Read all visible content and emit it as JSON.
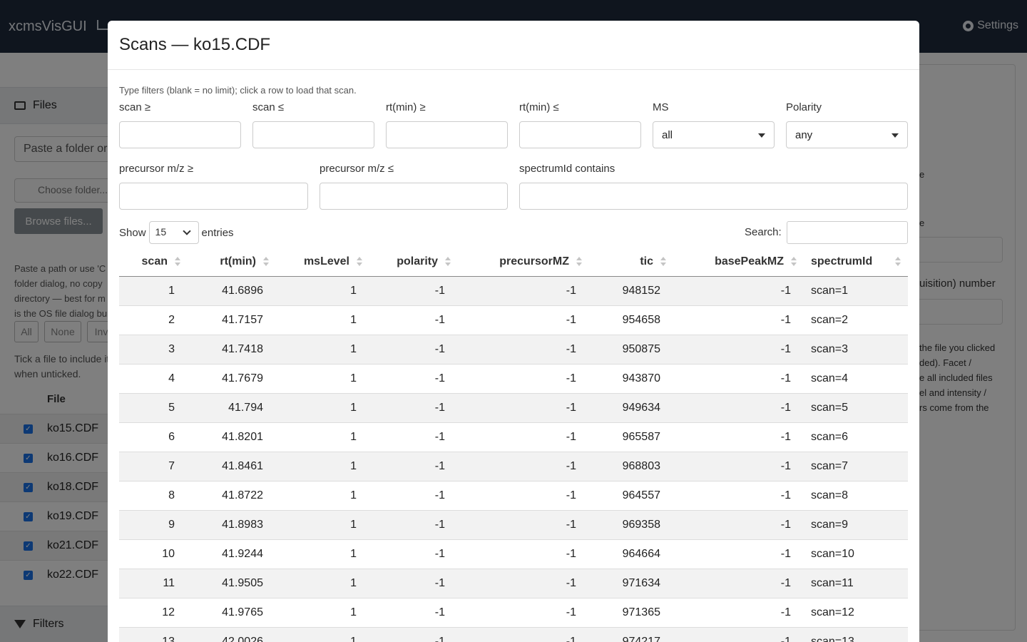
{
  "app": {
    "brand": "xcmsVisGUI",
    "settings_label": "Settings"
  },
  "sidebar": {
    "files_header": "Files",
    "folder_input_placeholder": "Paste a folder or",
    "choose_folder_placeholder": "Choose folder...",
    "browse_label": "Browse files...",
    "help_lines": [
      "Paste a path or use 'C",
      "folder dialog, no copy",
      "directory — best for m",
      "is the OS file dialog bu"
    ],
    "select_buttons": [
      "All",
      "None",
      "Inv"
    ],
    "tick_lines": [
      "Tick a file to include it",
      "when unticked."
    ],
    "file_column": "File",
    "files": [
      "ko15.CDF",
      "ko16.CDF",
      "ko18.CDF",
      "ko19.CDF",
      "ko21.CDF",
      "ko22.CDF"
    ],
    "filters_header": "Filters"
  },
  "right_panel": {
    "fragments": [
      "e",
      "e"
    ],
    "number_label": "uisition) number",
    "help_lines": [
      "the file you clicked",
      "ded). Facet /",
      "e all included files",
      "el and intensity /",
      "rs come from the"
    ]
  },
  "modal": {
    "title": "Scans — ko15.CDF",
    "hint": "Type filters (blank = no limit); click a row to load that scan.",
    "filters": {
      "scan_min": "scan ≥",
      "scan_max": "scan ≤",
      "rt_min": "rt(min) ≥",
      "rt_max": "rt(min) ≤",
      "ms": "MS",
      "ms_value": "all",
      "polarity": "Polarity",
      "polarity_value": "any",
      "prec_min": "precursor m/z ≥",
      "prec_max": "precursor m/z ≤",
      "spectrum_contains": "spectrumId contains"
    },
    "show_label": "Show",
    "entries_value": "15",
    "entries_label": "entries",
    "search_label": "Search:",
    "columns": [
      "scan",
      "rt(min)",
      "msLevel",
      "polarity",
      "precursorMZ",
      "tic",
      "basePeakMZ",
      "spectrumId"
    ],
    "rows": [
      [
        "1",
        "41.6896",
        "1",
        "-1",
        "-1",
        "948152",
        "-1",
        "scan=1"
      ],
      [
        "2",
        "41.7157",
        "1",
        "-1",
        "-1",
        "954658",
        "-1",
        "scan=2"
      ],
      [
        "3",
        "41.7418",
        "1",
        "-1",
        "-1",
        "950875",
        "-1",
        "scan=3"
      ],
      [
        "4",
        "41.7679",
        "1",
        "-1",
        "-1",
        "943870",
        "-1",
        "scan=4"
      ],
      [
        "5",
        "41.794",
        "1",
        "-1",
        "-1",
        "949634",
        "-1",
        "scan=5"
      ],
      [
        "6",
        "41.8201",
        "1",
        "-1",
        "-1",
        "965587",
        "-1",
        "scan=6"
      ],
      [
        "7",
        "41.8461",
        "1",
        "-1",
        "-1",
        "968803",
        "-1",
        "scan=7"
      ],
      [
        "8",
        "41.8722",
        "1",
        "-1",
        "-1",
        "964557",
        "-1",
        "scan=8"
      ],
      [
        "9",
        "41.8983",
        "1",
        "-1",
        "-1",
        "969358",
        "-1",
        "scan=9"
      ],
      [
        "10",
        "41.9244",
        "1",
        "-1",
        "-1",
        "964664",
        "-1",
        "scan=10"
      ],
      [
        "11",
        "41.9505",
        "1",
        "-1",
        "-1",
        "971634",
        "-1",
        "scan=11"
      ],
      [
        "12",
        "41.9765",
        "1",
        "-1",
        "-1",
        "971365",
        "-1",
        "scan=12"
      ],
      [
        "13",
        "42.0026",
        "1",
        "-1",
        "-1",
        "974217",
        "-1",
        "scan=13"
      ]
    ]
  }
}
